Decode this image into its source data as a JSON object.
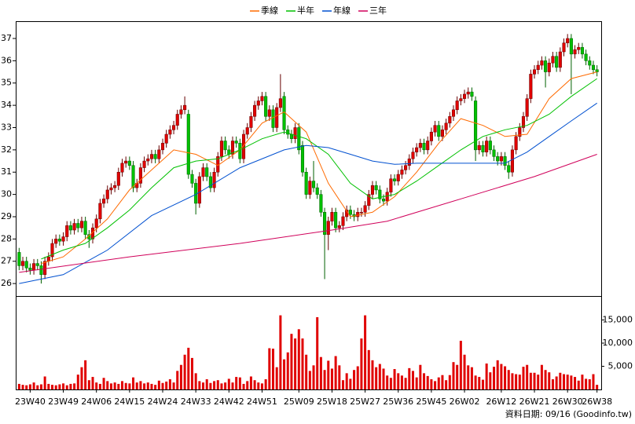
{
  "chart_data": {
    "type": "candlestick",
    "categories": [
      null,
      null,
      null,
      "23W40",
      null,
      null,
      null,
      null,
      null,
      null,
      null,
      null,
      "23W49",
      null,
      null,
      null,
      null,
      null,
      null,
      null,
      null,
      "24W06",
      null,
      null,
      null,
      null,
      null,
      null,
      null,
      null,
      "24W15",
      null,
      null,
      null,
      null,
      null,
      null,
      null,
      null,
      "24W24",
      null,
      null,
      null,
      null,
      null,
      null,
      null,
      null,
      "24W33",
      null,
      null,
      null,
      null,
      null,
      null,
      null,
      null,
      "24W42",
      null,
      null,
      null,
      null,
      null,
      null,
      null,
      null,
      "24W51",
      null,
      null,
      null,
      null,
      null,
      null,
      null,
      null,
      null,
      "25W09",
      null,
      null,
      null,
      null,
      null,
      null,
      null,
      null,
      "25W18",
      null,
      null,
      null,
      null,
      null,
      null,
      null,
      null,
      "25W27",
      null,
      null,
      null,
      null,
      null,
      null,
      null,
      null,
      "25W36",
      null,
      null,
      null,
      null,
      null,
      null,
      null,
      null,
      "25W45",
      null,
      null,
      null,
      null,
      null,
      null,
      null,
      null,
      "26W02",
      null,
      null,
      null,
      null,
      null,
      null,
      null,
      null,
      null,
      "26W12",
      null,
      null,
      null,
      null,
      null,
      null,
      null,
      null,
      "26W21",
      null,
      null,
      null,
      null,
      null,
      null,
      null,
      null,
      "26W30",
      null,
      null,
      null,
      null,
      null,
      null,
      null,
      "26W38"
    ],
    "open": [
      27.4,
      26.8,
      27.0,
      26.7,
      26.6,
      26.9,
      26.8,
      26.4,
      27.0,
      27.2,
      27.8,
      28.0,
      27.9,
      28.1,
      28.6,
      28.4,
      28.7,
      28.5,
      28.8,
      28.2,
      28.0,
      28.5,
      28.9,
      29.6,
      29.8,
      30.2,
      30.3,
      30.4,
      31.0,
      31.4,
      31.5,
      31.3,
      30.3,
      30.5,
      31.2,
      31.5,
      31.6,
      31.8,
      31.6,
      32.0,
      32.3,
      32.7,
      32.9,
      33.1,
      33.6,
      33.8,
      33.6,
      30.9,
      30.5,
      29.6,
      30.8,
      31.2,
      30.8,
      30.3,
      31.0,
      31.7,
      32.4,
      32.0,
      31.8,
      32.4,
      32.3,
      31.6,
      32.7,
      33.0,
      33.5,
      34.0,
      34.2,
      34.4,
      33.5,
      33.8,
      33.0,
      33.9,
      34.4,
      32.9,
      32.7,
      32.5,
      33.0,
      32.2,
      31.0,
      30.0,
      30.6,
      30.3,
      30.0,
      29.2,
      28.2,
      28.8,
      29.2,
      28.5,
      28.6,
      29.0,
      29.3,
      29.1,
      29.0,
      29.2,
      29.2,
      29.5,
      30.0,
      30.4,
      30.2,
      29.8,
      29.7,
      30.1,
      30.7,
      30.6,
      30.9,
      31.1,
      31.3,
      31.6,
      31.9,
      32.1,
      32.3,
      32.0,
      32.4,
      32.8,
      33.1,
      32.6,
      32.9,
      33.2,
      33.5,
      33.8,
      34.2,
      34.3,
      34.5,
      34.6,
      34.2,
      32.0,
      32.2,
      31.9,
      32.4,
      32.0,
      31.7,
      31.5,
      31.7,
      31.3,
      31.0,
      32.0,
      32.6,
      33.0,
      33.5,
      34.3,
      35.4,
      35.6,
      35.8,
      36.0,
      35.5,
      35.9,
      36.2,
      35.7,
      36.4,
      36.8,
      37.0,
      36.3,
      36.5,
      36.6,
      36.3,
      36.0,
      35.8,
      35.6
    ],
    "high": [
      27.6,
      27.2,
      27.2,
      26.9,
      27.1,
      27.1,
      27.0,
      27.2,
      27.4,
      28.0,
      28.2,
      28.2,
      28.3,
      28.8,
      28.8,
      28.9,
      28.9,
      29.0,
      29.0,
      28.4,
      28.7,
      29.1,
      29.8,
      30.0,
      30.4,
      30.5,
      30.6,
      31.2,
      31.6,
      31.7,
      31.7,
      31.5,
      30.7,
      31.4,
      31.7,
      31.8,
      32.0,
      32.0,
      32.2,
      32.5,
      32.9,
      33.1,
      33.3,
      33.8,
      34.0,
      34.4,
      33.8,
      31.1,
      30.7,
      31.0,
      31.4,
      31.4,
      31.0,
      31.2,
      31.9,
      32.6,
      32.6,
      32.2,
      32.6,
      32.6,
      32.5,
      32.9,
      33.2,
      33.7,
      34.2,
      34.4,
      34.6,
      34.6,
      34.0,
      34.0,
      34.1,
      35.4,
      34.6,
      33.1,
      32.9,
      33.2,
      33.2,
      32.4,
      31.2,
      30.8,
      31.5,
      30.5,
      30.2,
      29.4,
      29.0,
      29.4,
      29.4,
      28.8,
      29.2,
      29.5,
      29.5,
      29.3,
      29.4,
      29.4,
      29.7,
      30.2,
      30.6,
      30.6,
      30.4,
      30.0,
      30.3,
      30.9,
      30.9,
      31.1,
      31.3,
      31.5,
      31.8,
      32.1,
      32.3,
      32.5,
      32.5,
      32.6,
      33.0,
      33.3,
      33.3,
      33.1,
      33.4,
      33.7,
      34.0,
      34.4,
      34.5,
      34.7,
      34.8,
      34.8,
      34.4,
      32.4,
      32.4,
      32.6,
      32.6,
      32.2,
      31.9,
      31.9,
      31.9,
      31.5,
      32.2,
      32.8,
      33.2,
      33.7,
      34.5,
      35.6,
      35.8,
      36.0,
      36.2,
      36.2,
      36.1,
      36.4,
      36.4,
      36.6,
      37.0,
      37.2,
      37.2,
      36.7,
      36.8,
      36.8,
      36.5,
      36.2,
      36.0,
      35.8
    ],
    "low": [
      26.6,
      26.6,
      26.5,
      26.4,
      26.4,
      26.6,
      26.0,
      26.2,
      26.8,
      27.0,
      27.6,
      27.7,
      27.7,
      27.9,
      28.2,
      28.2,
      28.3,
      28.3,
      28.0,
      27.6,
      27.8,
      28.3,
      28.7,
      29.4,
      29.6,
      30.0,
      30.1,
      30.2,
      30.8,
      31.2,
      31.1,
      30.1,
      30.1,
      30.3,
      31.0,
      31.3,
      31.4,
      31.4,
      31.4,
      31.8,
      32.1,
      32.5,
      32.7,
      32.9,
      33.4,
      33.6,
      30.7,
      30.3,
      29.1,
      29.4,
      30.6,
      30.6,
      30.1,
      30.1,
      30.8,
      31.5,
      31.8,
      31.6,
      31.6,
      32.1,
      31.4,
      31.4,
      32.5,
      32.8,
      33.3,
      33.8,
      34.0,
      33.3,
      33.3,
      32.8,
      32.8,
      33.7,
      32.7,
      32.5,
      32.3,
      32.3,
      31.8,
      30.8,
      29.8,
      29.8,
      30.1,
      29.8,
      29.0,
      26.2,
      27.5,
      28.6,
      28.3,
      28.3,
      28.4,
      28.8,
      28.9,
      28.8,
      28.8,
      29.0,
      29.0,
      29.3,
      29.8,
      30.0,
      29.6,
      29.5,
      29.5,
      29.9,
      30.4,
      30.4,
      30.7,
      30.9,
      31.1,
      31.4,
      31.7,
      31.9,
      31.8,
      31.8,
      32.2,
      32.6,
      32.4,
      32.4,
      32.7,
      33.0,
      33.3,
      33.6,
      34.0,
      34.1,
      34.3,
      34.2,
      31.5,
      31.8,
      31.7,
      31.7,
      31.8,
      31.5,
      31.3,
      31.3,
      31.1,
      30.7,
      30.8,
      31.8,
      32.4,
      32.8,
      33.3,
      34.1,
      35.2,
      35.4,
      35.6,
      34.8,
      35.3,
      35.7,
      35.5,
      35.5,
      36.2,
      36.6,
      34.5,
      36.1,
      36.3,
      36.1,
      35.8,
      35.6,
      35.4,
      35.3
    ],
    "close": [
      26.8,
      27.0,
      26.7,
      26.6,
      26.9,
      26.8,
      26.4,
      27.0,
      27.2,
      27.8,
      28.0,
      27.9,
      28.1,
      28.6,
      28.4,
      28.7,
      28.5,
      28.8,
      28.2,
      28.0,
      28.5,
      28.9,
      29.6,
      29.8,
      30.2,
      30.3,
      30.4,
      31.0,
      31.4,
      31.5,
      31.3,
      30.3,
      30.5,
      31.2,
      31.5,
      31.6,
      31.8,
      31.6,
      32.0,
      32.3,
      32.7,
      32.9,
      33.1,
      33.6,
      33.8,
      34.0,
      30.9,
      30.5,
      29.6,
      30.8,
      31.2,
      30.8,
      30.3,
      31.0,
      31.7,
      32.4,
      32.0,
      31.8,
      32.4,
      32.3,
      31.6,
      32.7,
      33.0,
      33.5,
      34.0,
      34.2,
      34.4,
      33.5,
      33.8,
      33.0,
      33.9,
      34.3,
      32.9,
      32.7,
      32.5,
      33.0,
      32.0,
      31.0,
      30.0,
      30.6,
      30.3,
      30.0,
      29.2,
      28.2,
      28.8,
      29.2,
      28.5,
      28.6,
      29.0,
      29.3,
      29.1,
      29.0,
      29.2,
      29.2,
      29.5,
      30.0,
      30.4,
      30.2,
      29.8,
      29.7,
      30.1,
      30.7,
      30.6,
      30.9,
      31.1,
      31.3,
      31.6,
      31.9,
      32.1,
      32.3,
      32.0,
      32.4,
      32.8,
      33.1,
      32.6,
      32.9,
      33.2,
      33.5,
      33.8,
      34.2,
      34.3,
      34.5,
      34.6,
      34.4,
      32.0,
      32.2,
      31.9,
      32.4,
      32.0,
      31.7,
      31.5,
      31.7,
      31.3,
      31.0,
      32.0,
      32.6,
      33.0,
      33.5,
      34.3,
      35.4,
      35.6,
      35.8,
      36.0,
      35.5,
      35.9,
      36.2,
      35.7,
      36.4,
      36.8,
      37.0,
      36.3,
      36.5,
      36.6,
      36.3,
      36.0,
      35.8,
      35.6,
      35.5
    ],
    "up_color": "#e00000",
    "down_color": "#00c000",
    "ylim": [
      25.44,
      37.74
    ],
    "yticks": [
      26,
      27,
      28,
      29,
      30,
      31,
      32,
      33,
      34,
      35,
      36,
      37
    ],
    "series": [
      {
        "name": "季線",
        "color": "#ff6a00",
        "x": [
          6,
          12,
          18,
          24,
          30,
          36,
          42,
          48,
          54,
          60,
          66,
          72,
          78,
          84,
          90,
          96,
          102,
          108,
          114,
          120,
          126,
          132,
          138,
          144,
          150,
          157
        ],
        "values": [
          26.9,
          27.2,
          28.0,
          28.9,
          30.2,
          31.1,
          32.0,
          31.8,
          31.3,
          32.0,
          33.2,
          33.7,
          32.8,
          30.5,
          29.0,
          29.2,
          29.9,
          31.0,
          32.3,
          33.4,
          33.1,
          32.6,
          32.7,
          34.3,
          35.2,
          35.5
        ]
      },
      {
        "name": "半年",
        "color": "#00c000",
        "x": [
          6,
          12,
          18,
          24,
          30,
          36,
          42,
          48,
          54,
          60,
          66,
          72,
          78,
          84,
          90,
          96,
          102,
          108,
          114,
          120,
          126,
          132,
          138,
          144,
          150,
          157
        ],
        "values": [
          27.1,
          27.5,
          27.8,
          28.5,
          29.3,
          30.3,
          31.2,
          31.5,
          31.6,
          32.0,
          32.5,
          32.8,
          32.5,
          31.8,
          30.5,
          29.8,
          30.0,
          30.6,
          31.3,
          32.0,
          32.6,
          32.9,
          33.1,
          33.6,
          34.4,
          35.2
        ]
      },
      {
        "name": "年線",
        "color": "#0050d0",
        "x": [
          0,
          12,
          24,
          36,
          48,
          60,
          72,
          78,
          84,
          90,
          96,
          102,
          108,
          114,
          120,
          126,
          132,
          138,
          144,
          150,
          157
        ],
        "values": [
          26.0,
          26.4,
          27.5,
          29.05,
          30.0,
          31.2,
          32.0,
          32.2,
          32.1,
          31.8,
          31.5,
          31.35,
          31.4,
          31.4,
          31.4,
          31.4,
          31.4,
          31.9,
          32.6,
          33.3,
          34.1
        ]
      },
      {
        "name": "三年",
        "color": "#d0005a",
        "x": [
          0,
          30,
          60,
          85,
          100,
          120,
          140,
          157
        ],
        "values": [
          26.5,
          27.2,
          27.8,
          28.4,
          28.8,
          29.8,
          30.8,
          31.8
        ]
      }
    ],
    "volume": {
      "color": "#e00000",
      "values": [
        1200,
        1000,
        900,
        1100,
        1500,
        900,
        1100,
        2800,
        1200,
        1000,
        900,
        1100,
        1300,
        900,
        1200,
        1300,
        3200,
        4800,
        6300,
        2000,
        2700,
        1500,
        1200,
        2500,
        1800,
        1300,
        1500,
        1200,
        1800,
        1400,
        1300,
        2600,
        1500,
        1800,
        1300,
        1500,
        1200,
        1000,
        1900,
        1400,
        1700,
        2200,
        1500,
        4000,
        5300,
        7500,
        9000,
        6800,
        3500,
        1800,
        1500,
        2200,
        1400,
        1800,
        2000,
        1300,
        1500,
        2300,
        1500,
        2700,
        2600,
        1200,
        1800,
        2800,
        2000,
        1500,
        1300,
        2200,
        8900,
        8800,
        4800,
        16000,
        6500,
        8000,
        12000,
        11000,
        13000,
        11000,
        7500,
        4000,
        5200,
        15600,
        7000,
        4200,
        6200,
        4500,
        7200,
        5200,
        2000,
        3500,
        2300,
        4200,
        5000,
        11000,
        16000,
        8500,
        6300,
        4800,
        5500,
        4500,
        3000,
        2500,
        4400,
        3500,
        3000,
        2500,
        4600,
        4000,
        2600,
        5300,
        3500,
        2900,
        2200,
        1800,
        2600,
        3100,
        2000,
        3100,
        5900,
        5300,
        10500,
        7500,
        5200,
        4800,
        3000,
        2700,
        2100,
        5600,
        3700,
        4900,
        6300,
        5500,
        5000,
        4200,
        3500,
        3300,
        3200,
        4900,
        5300,
        3600,
        3600,
        3200,
        5300,
        4200,
        3700,
        2200,
        2800,
        3600,
        3300,
        3200,
        3000,
        2700,
        1900,
        3200,
        2300,
        2200,
        3300,
        1000
      ],
      "y2lim": [
        0,
        20000
      ],
      "y2ticks": [
        {
          "value": 5000,
          "label": "5,000"
        },
        {
          "value": 10000,
          "label": "10,000"
        },
        {
          "value": 15000,
          "label": "15,000"
        }
      ]
    },
    "footer": "資料日期: 09/16 (Goodinfo.tw)"
  }
}
